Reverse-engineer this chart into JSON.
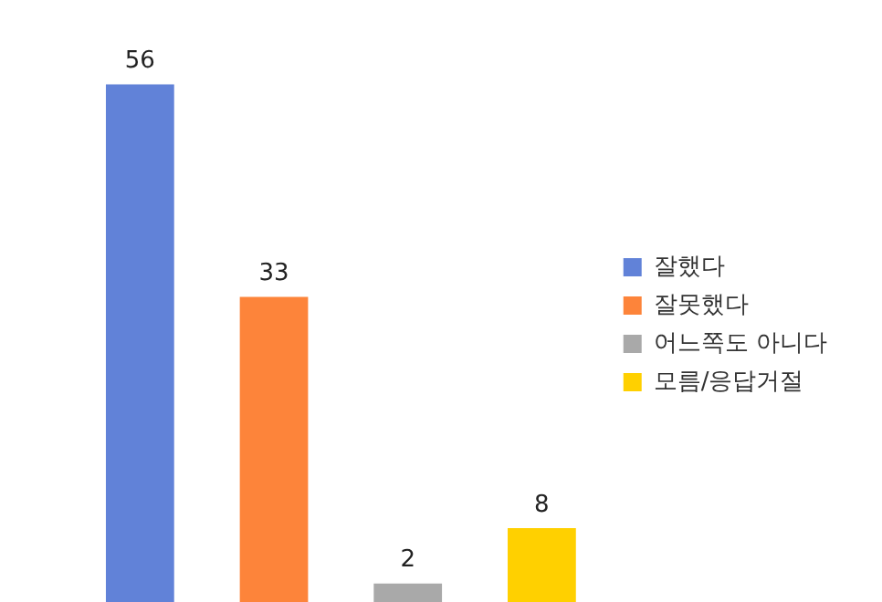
{
  "chart_data": {
    "type": "bar",
    "categories": [
      null,
      null,
      null,
      null
    ],
    "stacked": true,
    "series": [
      {
        "name": "잘했다",
        "color": "#6182d8",
        "values": [
          56,
          null,
          null,
          null
        ]
      },
      {
        "name": "잘못했다",
        "color": "#fd843a",
        "values": [
          null,
          33,
          null,
          null
        ]
      },
      {
        "name": "어느쪽도 아니다",
        "color": "#a9a9a9",
        "values": [
          null,
          null,
          2,
          null
        ]
      },
      {
        "name": "모름/응답거절",
        "color": "#ffd000",
        "values": [
          null,
          null,
          null,
          8
        ]
      }
    ],
    "data_labels": true,
    "legend": "right"
  }
}
